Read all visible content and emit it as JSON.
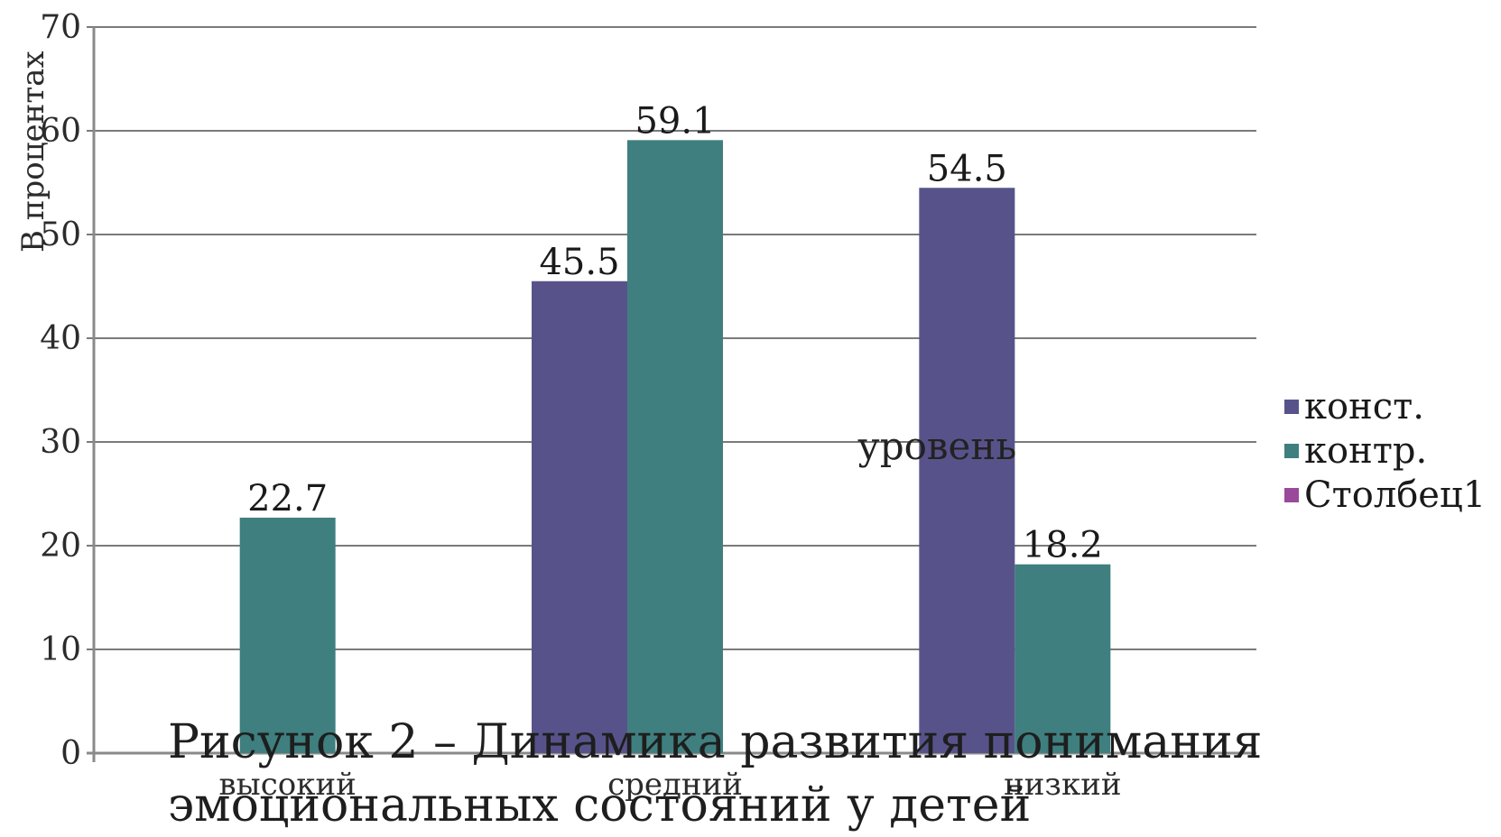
{
  "chart_data": {
    "type": "bar",
    "ylabel": "В процентах",
    "ylim": [
      0,
      70
    ],
    "yticks": [
      0,
      10,
      20,
      30,
      40,
      50,
      60,
      70
    ],
    "grid": true,
    "legend_position": "right",
    "categories": [
      "высокий",
      "средний",
      "низкий"
    ],
    "series": [
      {
        "name": "конст.",
        "color": "#57538a",
        "values": [
          null,
          45.5,
          54.5
        ]
      },
      {
        "name": "контр.",
        "color": "#3f7f7f",
        "values": [
          22.7,
          59.1,
          18.2
        ]
      },
      {
        "name": "Столбец1",
        "color": "#9a4a9a",
        "values": [
          null,
          null,
          null
        ]
      }
    ],
    "annotation": "уровень"
  },
  "caption": {
    "line1": "Рисунок 2 – Динамика развития понимания",
    "line2": "эмоциональных состояний у детей"
  }
}
